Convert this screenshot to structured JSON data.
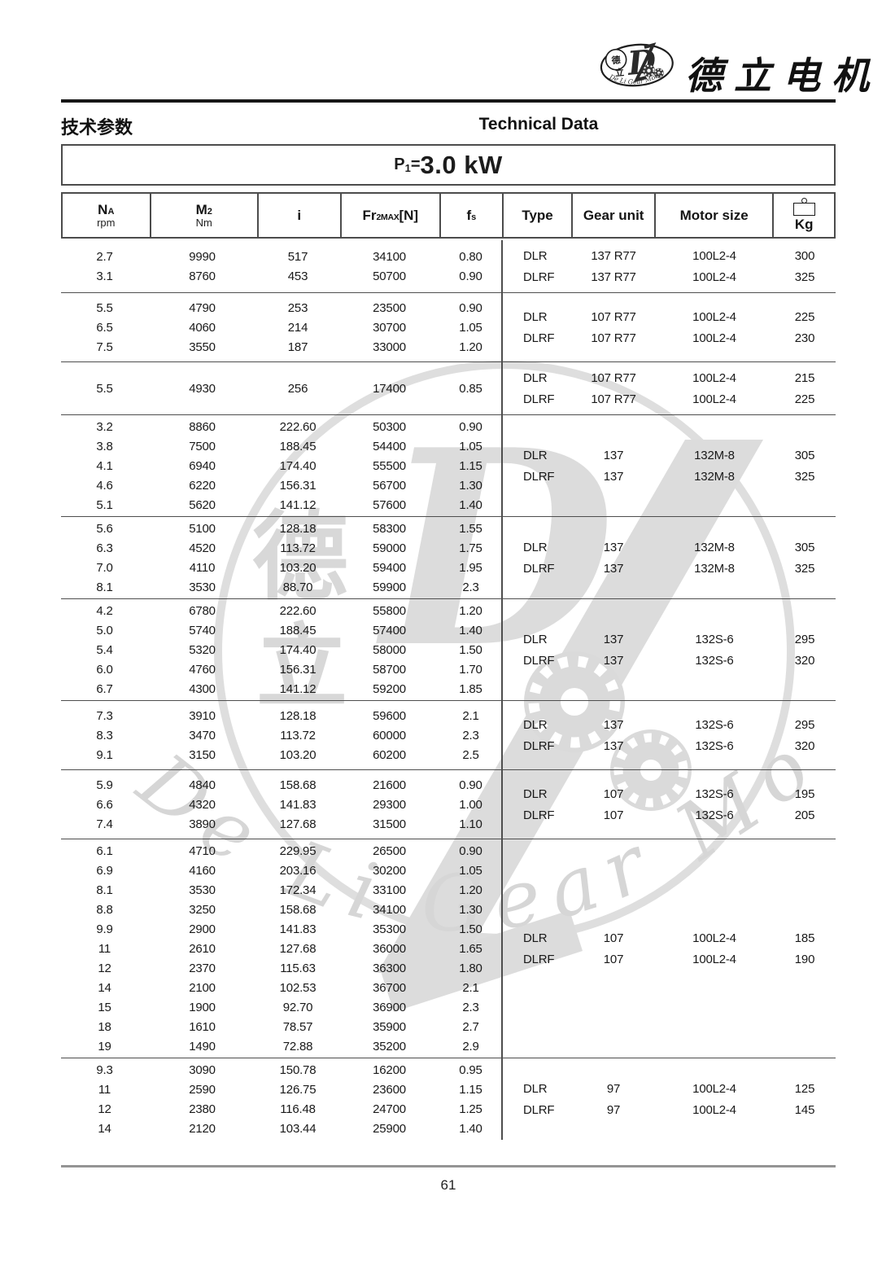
{
  "brand": {
    "name_cn": "德立电机",
    "logo_arc_text": "De Li Gear Motor",
    "logo_monogram": "D",
    "logo_char_top": "德",
    "logo_char_bottom": "立"
  },
  "header": {
    "title_cn": "技术参数",
    "title_en": "Technical Data"
  },
  "power": {
    "base": "P",
    "sub": "1",
    "eq": "=",
    "value": "3.0 kW"
  },
  "table": {
    "columns": [
      {
        "base": "N",
        "sub": "A",
        "unit": "rpm"
      },
      {
        "base": "M",
        "sub": "2",
        "unit": "Nm"
      },
      {
        "base": "i"
      },
      {
        "base": "Fr",
        "sub": "2MAX",
        "bracket": "[N]"
      },
      {
        "base": "f",
        "sub": "s"
      },
      {
        "base": "Type"
      },
      {
        "base": "Gear unit"
      },
      {
        "base": "Motor size"
      },
      {
        "base": "Kg",
        "icon": "weight-icon"
      }
    ],
    "groups": [
      {
        "rows": [
          [
            "2.7",
            "9990",
            "517",
            "34100",
            "0.80"
          ],
          [
            "3.1",
            "8760",
            "453",
            "50700",
            "0.90"
          ]
        ],
        "right": [
          [
            "DLR",
            "137 R77",
            "100L2-4",
            "300"
          ],
          [
            "DLRF",
            "137 R77",
            "100L2-4",
            "325"
          ]
        ]
      },
      {
        "rows": [
          [
            "5.5",
            "4790",
            "253",
            "23500",
            "0.90"
          ],
          [
            "6.5",
            "4060",
            "214",
            "30700",
            "1.05"
          ],
          [
            "7.5",
            "3550",
            "187",
            "33000",
            "1.20"
          ]
        ],
        "right": [
          [
            "DLR",
            "107 R77",
            "100L2-4",
            "225"
          ],
          [
            "DLRF",
            "107 R77",
            "100L2-4",
            "230"
          ]
        ]
      },
      {
        "rows": [
          [
            "5.5",
            "4930",
            "256",
            "17400",
            "0.85"
          ]
        ],
        "right": [
          [
            "DLR",
            "107 R77",
            "100L2-4",
            "215"
          ],
          [
            "DLRF",
            "107 R77",
            "100L2-4",
            "225"
          ]
        ]
      },
      {
        "rows": [
          [
            "3.2",
            "8860",
            "222.60",
            "50300",
            "0.90"
          ],
          [
            "3.8",
            "7500",
            "188.45",
            "54400",
            "1.05"
          ],
          [
            "4.1",
            "6940",
            "174.40",
            "55500",
            "1.15"
          ],
          [
            "4.6",
            "6220",
            "156.31",
            "56700",
            "1.30"
          ],
          [
            "5.1",
            "5620",
            "141.12",
            "57600",
            "1.40"
          ]
        ],
        "right": [
          [
            "DLR",
            "137",
            "132M-8",
            "305"
          ],
          [
            "DLRF",
            "137",
            "132M-8",
            "325"
          ]
        ]
      },
      {
        "rows": [
          [
            "5.6",
            "5100",
            "128.18",
            "58300",
            "1.55"
          ],
          [
            "6.3",
            "4520",
            "113.72",
            "59000",
            "1.75"
          ],
          [
            "7.0",
            "4110",
            "103.20",
            "59400",
            "1.95"
          ],
          [
            "8.1",
            "3530",
            "88.70",
            "59900",
            "2.3"
          ]
        ],
        "right": [
          [
            "DLR",
            "137",
            "132M-8",
            "305"
          ],
          [
            "DLRF",
            "137",
            "132M-8",
            "325"
          ]
        ]
      },
      {
        "rows": [
          [
            "4.2",
            "6780",
            "222.60",
            "55800",
            "1.20"
          ],
          [
            "5.0",
            "5740",
            "188.45",
            "57400",
            "1.40"
          ],
          [
            "5.4",
            "5320",
            "174.40",
            "58000",
            "1.50"
          ],
          [
            "6.0",
            "4760",
            "156.31",
            "58700",
            "1.70"
          ],
          [
            "6.7",
            "4300",
            "141.12",
            "59200",
            "1.85"
          ]
        ],
        "right": [
          [
            "DLR",
            "137",
            "132S-6",
            "295"
          ],
          [
            "DLRF",
            "137",
            "132S-6",
            "320"
          ]
        ]
      },
      {
        "rows": [
          [
            "7.3",
            "3910",
            "128.18",
            "59600",
            "2.1"
          ],
          [
            "8.3",
            "3470",
            "113.72",
            "60000",
            "2.3"
          ],
          [
            "9.1",
            "3150",
            "103.20",
            "60200",
            "2.5"
          ]
        ],
        "right": [
          [
            "DLR",
            "137",
            "132S-6",
            "295"
          ],
          [
            "DLRF",
            "137",
            "132S-6",
            "320"
          ]
        ]
      },
      {
        "rows": [
          [
            "5.9",
            "4840",
            "158.68",
            "21600",
            "0.90"
          ],
          [
            "6.6",
            "4320",
            "141.83",
            "29300",
            "1.00"
          ],
          [
            "7.4",
            "3890",
            "127.68",
            "31500",
            "1.10"
          ]
        ],
        "right": [
          [
            "DLR",
            "107",
            "132S-6",
            "195"
          ],
          [
            "DLRF",
            "107",
            "132S-6",
            "205"
          ]
        ]
      },
      {
        "rows": [
          [
            "6.1",
            "4710",
            "229.95",
            "26500",
            "0.90"
          ],
          [
            "6.9",
            "4160",
            "203.16",
            "30200",
            "1.05"
          ],
          [
            "8.1",
            "3530",
            "172.34",
            "33100",
            "1.20"
          ],
          [
            "8.8",
            "3250",
            "158.68",
            "34100",
            "1.30"
          ],
          [
            "9.9",
            "2900",
            "141.83",
            "35300",
            "1.50"
          ],
          [
            "11",
            "2610",
            "127.68",
            "36000",
            "1.65"
          ],
          [
            "12",
            "2370",
            "115.63",
            "36300",
            "1.80"
          ],
          [
            "14",
            "2100",
            "102.53",
            "36700",
            "2.1"
          ],
          [
            "15",
            "1900",
            "92.70",
            "36900",
            "2.3"
          ],
          [
            "18",
            "1610",
            "78.57",
            "35900",
            "2.7"
          ],
          [
            "19",
            "1490",
            "72.88",
            "35200",
            "2.9"
          ]
        ],
        "right": [
          [
            "DLR",
            "107",
            "100L2-4",
            "185"
          ],
          [
            "DLRF",
            "107",
            "100L2-4",
            "190"
          ]
        ]
      },
      {
        "rows": [
          [
            "9.3",
            "3090",
            "150.78",
            "16200",
            "0.95"
          ],
          [
            "11",
            "2590",
            "126.75",
            "23600",
            "1.15"
          ],
          [
            "12",
            "2380",
            "116.48",
            "24700",
            "1.25"
          ],
          [
            "14",
            "2120",
            "103.44",
            "25900",
            "1.40"
          ]
        ],
        "right": [
          [
            "DLR",
            "97",
            "100L2-4",
            "125"
          ],
          [
            "DLRF",
            "97",
            "100L2-4",
            "145"
          ]
        ]
      }
    ]
  },
  "footer": {
    "page_number": "61"
  },
  "colors": {
    "text": "#1c1c1c",
    "rule_dark": "#171717",
    "line_dark": "#4c4c4c",
    "rule_gray": "#949494",
    "watermark": "#d9d9d9"
  }
}
